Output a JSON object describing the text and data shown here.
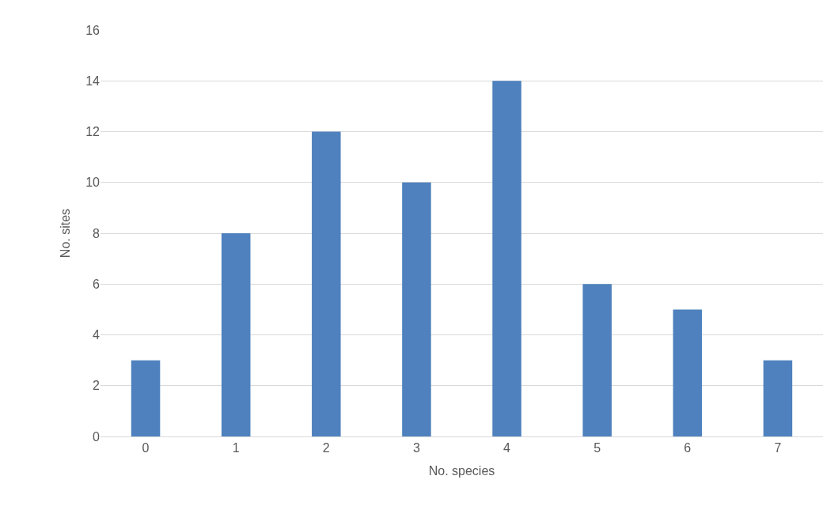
{
  "chart_data": {
    "type": "bar",
    "xlabel": "No. species",
    "ylabel": "No. sites",
    "categories": [
      "0",
      "1",
      "2",
      "3",
      "4",
      "5",
      "6",
      "7"
    ],
    "values": [
      3,
      8,
      12,
      10,
      14,
      6,
      5,
      3
    ],
    "color": "#4e81bd",
    "ylim": [
      0,
      16
    ],
    "yticks": [
      0,
      2,
      4,
      6,
      8,
      10,
      12,
      14,
      16
    ],
    "grid": "y",
    "legend": false
  }
}
